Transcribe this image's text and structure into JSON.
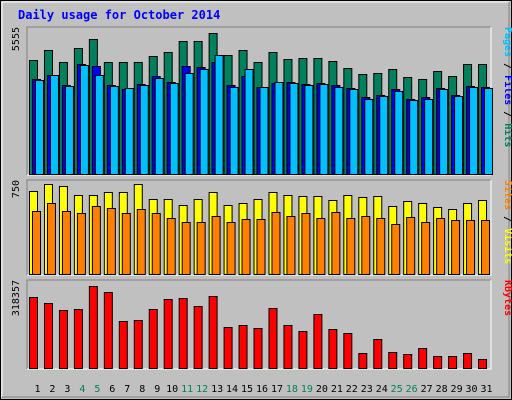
{
  "colors": {
    "background": "#c0c0c0",
    "title": "#0000ff",
    "hits": "#00805c",
    "files": "#0000ff",
    "pages": "#00c0ff",
    "visits": "#ffff00",
    "sites": "#ff8000",
    "kbytes": "#ff0000",
    "weekend_label": "#00805c",
    "weekday_label": "#000000"
  },
  "chart_data": {
    "type": "bar",
    "title": "Daily usage for October 2014",
    "categories": [
      "1",
      "2",
      "3",
      "4",
      "5",
      "6",
      "7",
      "8",
      "9",
      "10",
      "11",
      "12",
      "13",
      "14",
      "15",
      "16",
      "17",
      "18",
      "19",
      "20",
      "21",
      "22",
      "23",
      "24",
      "25",
      "26",
      "27",
      "28",
      "29",
      "30",
      "31"
    ],
    "weekend_days": [
      "4",
      "5",
      "11",
      "12",
      "18",
      "19",
      "25",
      "26"
    ],
    "panels": [
      {
        "id": "top",
        "max_label": "5555",
        "ymax": 5555,
        "legend": [
          {
            "text": "Pages",
            "color_key": "pages"
          },
          {
            "text": "Files",
            "color_key": "files"
          },
          {
            "text": "Hits",
            "color_key": "hits"
          }
        ],
        "series": [
          {
            "name": "Hits",
            "color_key": "hits",
            "values": [
              4450,
              4820,
              4370,
              4900,
              5230,
              4350,
              4350,
              4350,
              4600,
              4740,
              5160,
              5160,
              5470,
              4610,
              4840,
              4360,
              4730,
              4480,
              4500,
              4530,
              4380,
              4140,
              3880,
              3930,
              4100,
              3780,
              3710,
              4030,
              3800,
              4280,
              4270
            ]
          },
          {
            "name": "Files",
            "color_key": "files",
            "values": [
              3720,
              3870,
              3460,
              4300,
              4200,
              3480,
              3300,
              3520,
              3800,
              3590,
              4200,
              4150,
              4370,
              3470,
              3800,
              3400,
              3550,
              3580,
              3500,
              3560,
              3460,
              3350,
              3000,
              3100,
              3300,
              2950,
              2990,
              3350,
              3100,
              3450,
              3410
            ]
          },
          {
            "name": "Pages",
            "color_key": "pages",
            "values": [
              3680,
              3840,
              3420,
              4260,
              3840,
              3440,
              3340,
              3480,
              3760,
              3540,
              3940,
              4100,
              4640,
              3410,
              4080,
              3380,
              3570,
              3530,
              3470,
              3510,
              3400,
              3320,
              2930,
              3040,
              3240,
              2890,
              2940,
              3300,
              3040,
              3400,
              3360
            ]
          }
        ]
      },
      {
        "id": "middle",
        "max_label": "750",
        "ymax": 750,
        "legend": [
          {
            "text": "Sites",
            "color_key": "sites"
          },
          {
            "text": "Visits",
            "color_key": "visits"
          }
        ],
        "series": [
          {
            "name": "Visits",
            "color_key": "visits",
            "values": [
              690,
              750,
              730,
              660,
              660,
              680,
              680,
              750,
              630,
              630,
              580,
              630,
              680,
              580,
              590,
              630,
              680,
              660,
              650,
              650,
              620,
              660,
              640,
              650,
              570,
              610,
              590,
              560,
              540,
              590,
              620
            ]
          },
          {
            "name": "Sites",
            "color_key": "sites",
            "values": [
              525,
              590,
              530,
              510,
              570,
              550,
              510,
              540,
              510,
              470,
              440,
              440,
              490,
              440,
              460,
              460,
              520,
              490,
              510,
              470,
              520,
              470,
              490,
              470,
              420,
              480,
              440,
              470,
              450,
              450,
              450
            ]
          }
        ]
      },
      {
        "id": "bottom",
        "max_label": "318357",
        "ymax": 318357,
        "legend": [
          {
            "text": "KBytes",
            "color_key": "kbytes"
          }
        ],
        "series": [
          {
            "name": "KBytes",
            "color_key": "kbytes",
            "values": [
              271000,
              248000,
              220000,
              225000,
              309000,
              288000,
              180000,
              183000,
              225000,
              261000,
              266000,
              237000,
              274000,
              158000,
              166000,
              152000,
              227000,
              165000,
              143000,
              207000,
              151000,
              134000,
              61000,
              113000,
              65000,
              55000,
              80000,
              48000,
              50000,
              61000,
              36000
            ]
          }
        ]
      }
    ]
  }
}
